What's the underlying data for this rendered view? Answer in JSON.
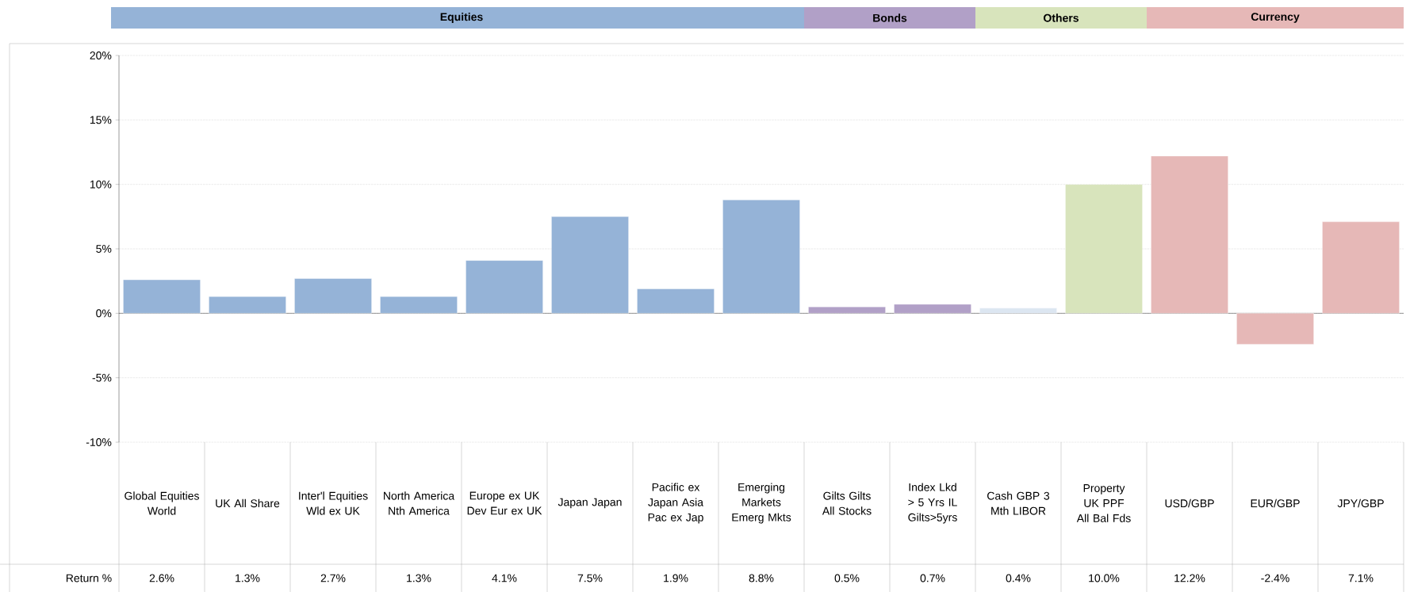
{
  "chart_data": {
    "type": "bar",
    "categories": [
      "Global Equities World",
      "UK All Share",
      "Inter'l Equities Wld ex UK",
      "North America Nth America",
      "Europe ex UK Dev Eur ex UK",
      "Japan Japan",
      "Pacific ex Japan Asia Pac ex Jap",
      "Emerging Markets Emerg Mkts",
      "Gilts Gilts All Stocks",
      "Index Lkd > 5 Yrs IL Gilts>5yrs",
      "Cash GBP 3 Mth LIBOR",
      "Property UK PPF All Bal Fds",
      "USD/GBP",
      "EUR/GBP",
      "JPY/GBP"
    ],
    "values": [
      2.6,
      1.3,
      2.7,
      1.3,
      4.1,
      7.5,
      1.9,
      8.8,
      0.5,
      0.7,
      0.4,
      10.0,
      12.2,
      -2.4,
      7.1
    ],
    "value_labels": [
      "2.6%",
      "1.3%",
      "2.7%",
      "1.3%",
      "4.1%",
      "7.5%",
      "1.9%",
      "8.8%",
      "0.5%",
      "0.7%",
      "0.4%",
      "10.0%",
      "12.2%",
      "-2.4%",
      "7.1%"
    ],
    "colors": [
      "#95b3d7",
      "#95b3d7",
      "#95b3d7",
      "#95b3d7",
      "#95b3d7",
      "#95b3d7",
      "#95b3d7",
      "#95b3d7",
      "#b1a0c7",
      "#b1a0c7",
      "#dce6f1",
      "#d8e4bc",
      "#e6b8b7",
      "#e6b8b7",
      "#e6b8b7"
    ],
    "ylim": [
      -10,
      20
    ],
    "yticks": [
      {
        "value": -10,
        "label": "-10%"
      },
      {
        "value": -5,
        "label": "-5%"
      },
      {
        "value": 0,
        "label": "0%"
      },
      {
        "value": 5,
        "label": "5%"
      },
      {
        "value": 10,
        "label": "10%"
      },
      {
        "value": 15,
        "label": "15%"
      },
      {
        "value": 20,
        "label": "20%"
      }
    ],
    "grid": "y",
    "annotations": [
      "Equities",
      "Bonds",
      "Others",
      "Currency",
      "Return %"
    ]
  }
}
